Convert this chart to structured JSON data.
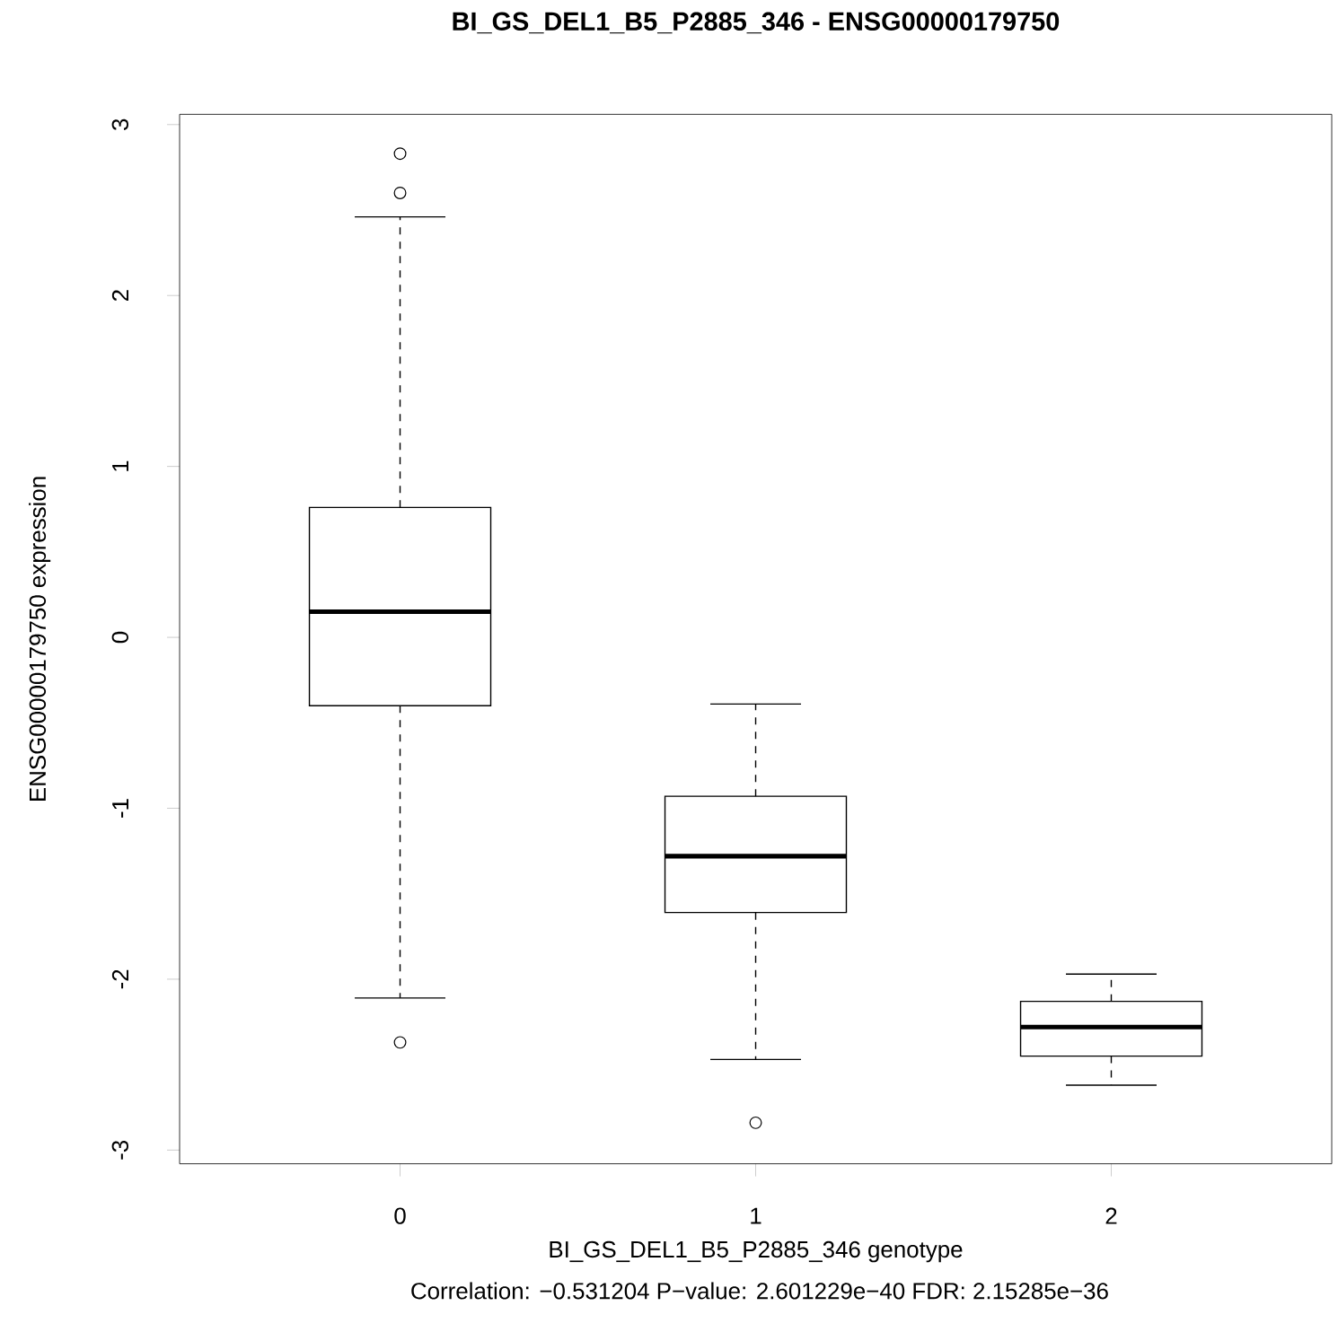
{
  "chart_data": {
    "type": "box",
    "title": "BI_GS_DEL1_B5_P2885_346  -  ENSG00000179750",
    "xlabel": "BI_GS_DEL1_B5_P2885_346  genotype",
    "ylabel": "ENSG00000179750  expression",
    "annotations": [
      "Correlation:  −0.531204 P−value:  2.601229e−40  FDR:  2.15285e−36"
    ],
    "categories": [
      "0",
      "1",
      "2"
    ],
    "boxes": [
      {
        "low": -2.11,
        "q1": -0.4,
        "median": 0.15,
        "q3": 0.76,
        "high": 2.46,
        "outliers": [
          2.83,
          2.6,
          -2.37
        ]
      },
      {
        "low": -2.47,
        "q1": -1.61,
        "median": -1.28,
        "q3": -0.93,
        "high": -0.39,
        "outliers": [
          -2.84
        ]
      },
      {
        "low": -2.62,
        "q1": -2.45,
        "median": -2.28,
        "q3": -2.13,
        "high": -1.97
      }
    ],
    "ylim": [
      -3.08,
      3.06
    ],
    "yticks": [
      -3,
      -2,
      -1,
      0,
      1,
      2,
      3
    ]
  }
}
